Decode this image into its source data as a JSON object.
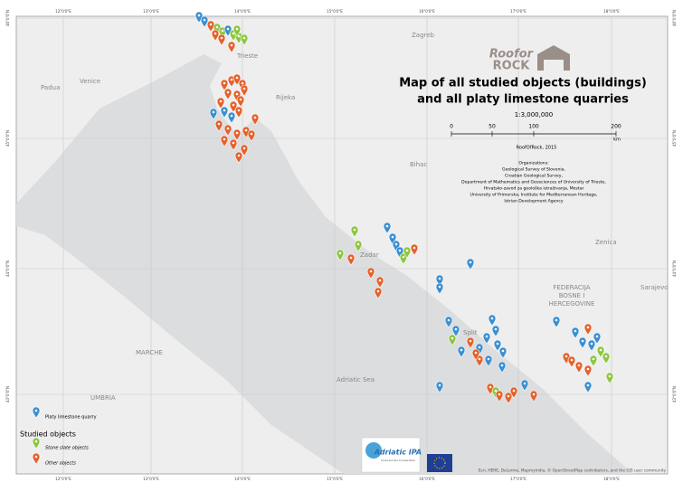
{
  "title": {
    "line1": "Map of all studied objects (buildings)",
    "line2": "and all platy limestone quarries"
  },
  "logo": {
    "line1": "Roofor",
    "line2": "ROCK"
  },
  "scale": {
    "ratio": "1:3,000,000",
    "labels": [
      "0",
      "50",
      "100",
      "200"
    ],
    "unit": "km"
  },
  "credit": "RoofOfRock, 2015",
  "organizations": [
    "Organizations:",
    "Geological Survey of Slovenia,",
    "Croatian Geological Survey,",
    "Department of Mathematics and Geosciences of University of Trieste,",
    "Hrvatsko-zavod za geološka istraživanja, Mostar",
    "University of Primorska, Institute for Mediterranean Heritage,",
    "Istrian Development Agency"
  ],
  "legend": {
    "quarry": "Platy limestone quarry",
    "heading": "Studied objects",
    "stone_slate": "Stone slate objects",
    "other": "Other objects"
  },
  "places": {
    "zagreb": "Zagreb",
    "trieste": "Trieste",
    "padua": "Padua",
    "venice": "Venice",
    "rijeka": "Rijeka",
    "bihac": "Bihac",
    "zadar": "Zadar",
    "split": "Split",
    "zenica": "Zenica",
    "sarajevo": "Sarajevo",
    "federacija1": "FEDERACIJA",
    "federacija2": "BOSNE I",
    "federacija3": "HERCEGOVINE",
    "sea": "Adriatic Sea",
    "marche": "MARCHE",
    "umbria": "UMBRIA"
  },
  "graticule": {
    "top": [
      "12°0'0\"E",
      "13°0'0\"E",
      "14°0'0\"E",
      "15°0'0\"E",
      "16°0'0\"E",
      "17°0'0\"E",
      "18°0'0\"E"
    ],
    "side": [
      "46°0'0\"N",
      "45°0'0\"N",
      "44°0'0\"N",
      "43°0'0\"N"
    ]
  },
  "ipa": {
    "name": "Adriatic IPA",
    "sub": "Cross-border Cooperation"
  },
  "attribution": "Esri, HERE, DeLorme, MapmyIndia, © OpenStreetMap contributors, and the GIS user community"
}
